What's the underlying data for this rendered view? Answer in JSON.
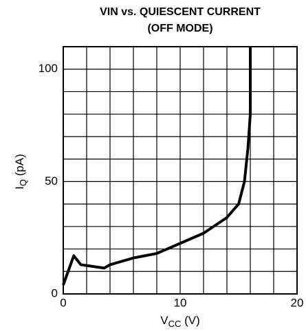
{
  "chart_data": {
    "type": "line",
    "title": [
      "VIN vs. QUIESCENT CURRENT",
      "(OFF MODE)"
    ],
    "xlabel": {
      "text": "V",
      "sub": "CC",
      "rest": " (V)"
    },
    "ylabel": {
      "text": "I",
      "sub": "Q",
      "rest": " (pA)"
    },
    "x": [
      0,
      0.9,
      1.5,
      3.5,
      4,
      6,
      8,
      10,
      12,
      14,
      15,
      15.5,
      15.8,
      16,
      16
    ],
    "series": [
      {
        "color": "#000000",
        "values": [
          4,
          17,
          13,
          11.5,
          13,
          16,
          18,
          22.5,
          27,
          34,
          40,
          50,
          65,
          80,
          110
        ]
      }
    ],
    "xlim": [
      0,
      20
    ],
    "ylim": [
      0,
      110
    ],
    "xticks": [
      0,
      10,
      20
    ],
    "yticks": [
      0,
      50,
      100
    ],
    "xgrid": [
      0,
      2,
      4,
      6,
      8,
      10,
      12,
      14,
      16,
      18,
      20
    ],
    "ygrid": [
      0,
      10,
      20,
      30,
      40,
      50,
      60,
      70,
      80,
      90,
      100,
      110
    ],
    "grid": true
  }
}
